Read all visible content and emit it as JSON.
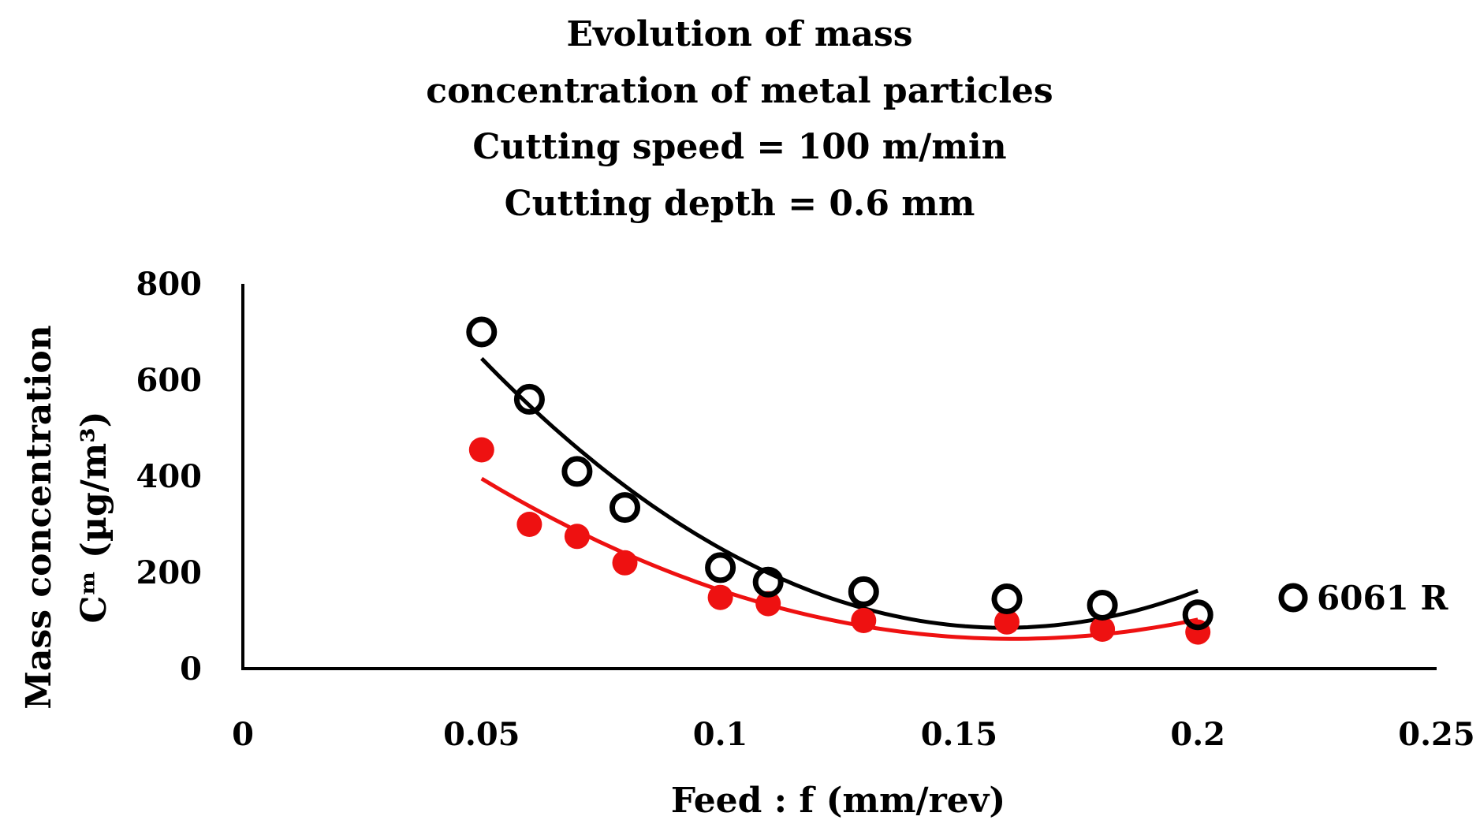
{
  "chart_data": {
    "type": "scatter",
    "title_lines": [
      "Evolution of mass",
      "concentration of metal particles",
      "Cutting speed = 100 m/min",
      "Cutting depth = 0.6 mm"
    ],
    "xlabel": "Feed : f (mm/rev)",
    "ylabel_line1": "Mass concentration",
    "ylabel_line2": "Cᵐ (µg/m³)",
    "xlim": [
      0,
      0.25
    ],
    "ylim": [
      0,
      800
    ],
    "x_ticks": [
      0,
      0.05,
      0.1,
      0.15,
      0.2,
      0.25
    ],
    "x_tick_labels": [
      "0",
      "0.05",
      "0.1",
      "0.15",
      "0.2",
      "0.25"
    ],
    "y_ticks": [
      0,
      200,
      400,
      600,
      800
    ],
    "y_tick_labels": [
      "0",
      "200",
      "400",
      "600",
      "800"
    ],
    "grid": false,
    "legend_position": "right",
    "series": [
      {
        "name": "6061 R",
        "color": "#000000",
        "marker": "open-circle",
        "x": [
          0.05,
          0.06,
          0.07,
          0.08,
          0.1,
          0.11,
          0.13,
          0.16,
          0.18,
          0.2
        ],
        "y": [
          700,
          560,
          410,
          335,
          210,
          180,
          160,
          145,
          132,
          112
        ],
        "trendline": {
          "x_range": [
            0.05,
            0.2
          ],
          "anchor_x": [
            0.05,
            0.16,
            0.2
          ],
          "anchor_y": [
            645,
            85,
            162
          ]
        }
      },
      {
        "name": "",
        "color": "#ee1111",
        "marker": "filled-circle",
        "x": [
          0.05,
          0.06,
          0.07,
          0.08,
          0.1,
          0.11,
          0.13,
          0.16,
          0.18,
          0.2
        ],
        "y": [
          455,
          300,
          275,
          220,
          148,
          135,
          100,
          97,
          82,
          76
        ],
        "trendline": {
          "x_range": [
            0.05,
            0.2
          ],
          "anchor_x": [
            0.05,
            0.16,
            0.2
          ],
          "anchor_y": [
            395,
            62,
            102
          ]
        }
      }
    ],
    "legend": [
      {
        "label": "6061 R",
        "marker": "open-circle",
        "color": "#000000"
      }
    ]
  }
}
